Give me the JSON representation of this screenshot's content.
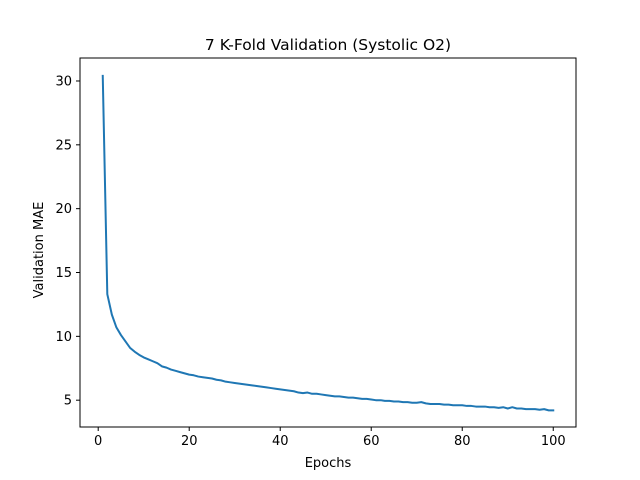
{
  "chart_data": {
    "type": "line",
    "title": "7 K-Fold Validation (Systolic O2)",
    "xlabel": "Epochs",
    "ylabel": "Validation MAE",
    "xlim": [
      -4,
      105
    ],
    "ylim": [
      2.9,
      31.8
    ],
    "xticks": [
      0,
      20,
      40,
      60,
      80,
      100
    ],
    "yticks": [
      5,
      10,
      15,
      20,
      25,
      30
    ],
    "grid": false,
    "line_color": "#1f77b4",
    "series": [
      {
        "x": [
          1,
          2,
          3,
          4,
          5,
          6,
          7,
          8,
          9,
          10,
          11,
          12,
          13,
          14,
          15,
          16,
          17,
          18,
          19,
          20,
          21,
          22,
          23,
          24,
          25,
          26,
          27,
          28,
          29,
          30,
          31,
          32,
          33,
          34,
          35,
          36,
          37,
          38,
          39,
          40,
          41,
          42,
          43,
          44,
          45,
          46,
          47,
          48,
          49,
          50,
          51,
          52,
          53,
          54,
          55,
          56,
          57,
          58,
          59,
          60,
          61,
          62,
          63,
          64,
          65,
          66,
          67,
          68,
          69,
          70,
          71,
          72,
          73,
          74,
          75,
          76,
          77,
          78,
          79,
          80,
          81,
          82,
          83,
          84,
          85,
          86,
          87,
          88,
          89,
          90,
          91,
          92,
          93,
          94,
          95,
          96,
          97,
          98,
          99,
          100
        ],
        "values": [
          30.4,
          13.3,
          11.7,
          10.7,
          10.1,
          9.6,
          9.1,
          8.8,
          8.55,
          8.35,
          8.2,
          8.05,
          7.9,
          7.65,
          7.55,
          7.4,
          7.3,
          7.2,
          7.1,
          7.0,
          6.95,
          6.85,
          6.8,
          6.75,
          6.7,
          6.6,
          6.55,
          6.45,
          6.4,
          6.35,
          6.3,
          6.25,
          6.2,
          6.15,
          6.1,
          6.05,
          6.0,
          5.95,
          5.9,
          5.85,
          5.8,
          5.75,
          5.7,
          5.6,
          5.55,
          5.6,
          5.5,
          5.5,
          5.45,
          5.4,
          5.35,
          5.3,
          5.3,
          5.25,
          5.2,
          5.2,
          5.15,
          5.1,
          5.1,
          5.05,
          5.0,
          5.0,
          4.95,
          4.95,
          4.9,
          4.9,
          4.85,
          4.85,
          4.8,
          4.8,
          4.85,
          4.75,
          4.7,
          4.7,
          4.7,
          4.65,
          4.65,
          4.6,
          4.6,
          4.6,
          4.55,
          4.55,
          4.5,
          4.5,
          4.5,
          4.45,
          4.45,
          4.4,
          4.45,
          4.35,
          4.45,
          4.35,
          4.35,
          4.3,
          4.3,
          4.3,
          4.25,
          4.3,
          4.2,
          4.2
        ]
      }
    ]
  }
}
